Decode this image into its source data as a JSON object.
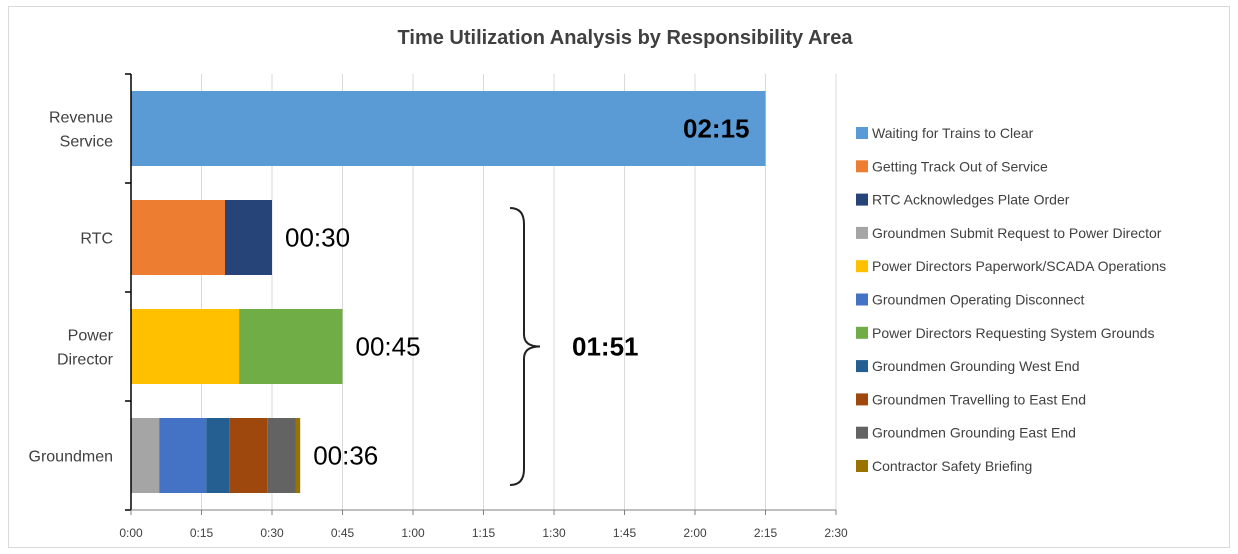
{
  "chart_data": {
    "type": "bar",
    "orientation": "horizontal",
    "stacked": true,
    "title": "Time Utilization Analysis by Responsibility Area",
    "xlabel": "",
    "ylabel": "",
    "value_unit": "minutes",
    "xlim": [
      0,
      150
    ],
    "xticks": [
      0,
      15,
      30,
      45,
      60,
      75,
      90,
      105,
      120,
      135,
      150
    ],
    "xtick_labels": [
      "0:00",
      "0:15",
      "0:30",
      "0:45",
      "1:00",
      "1:15",
      "1:30",
      "1:45",
      "2:00",
      "2:15",
      "2:30"
    ],
    "grid": "vertical",
    "legend_position": "right",
    "categories": [
      {
        "label_lines": [
          "Revenue",
          "Service"
        ],
        "total_label": "02:15",
        "total_bold": true,
        "total_inside": true
      },
      {
        "label_lines": [
          "RTC"
        ],
        "total_label": "00:30",
        "total_bold": false,
        "total_inside": false
      },
      {
        "label_lines": [
          "Power",
          "Director"
        ],
        "total_label": "00:45",
        "total_bold": false,
        "total_inside": false
      },
      {
        "label_lines": [
          "Groundmen"
        ],
        "total_label": "00:36",
        "total_bold": false,
        "total_inside": false
      }
    ],
    "series": [
      {
        "name": "Waiting for Trains to Clear",
        "color": "#5b9bd5",
        "values": [
          135,
          0,
          0,
          0
        ]
      },
      {
        "name": "Getting Track Out of Service",
        "color": "#ed7d31",
        "values": [
          0,
          20,
          0,
          0
        ]
      },
      {
        "name": "RTC Acknowledges Plate Order",
        "color": "#264478",
        "values": [
          0,
          10,
          0,
          0
        ]
      },
      {
        "name": "Groundmen Submit Request to Power Director",
        "color": "#a5a5a5",
        "values": [
          0,
          0,
          0,
          6
        ]
      },
      {
        "name": "Power Directors Paperwork/SCADA Operations",
        "color": "#ffc000",
        "values": [
          0,
          0,
          23,
          0
        ]
      },
      {
        "name": "Groundmen Operating Disconnect",
        "color": "#4472c4",
        "values": [
          0,
          0,
          0,
          10
        ]
      },
      {
        "name": "Power Directors Requesting System Grounds",
        "color": "#70ad47",
        "values": [
          0,
          0,
          22,
          0
        ]
      },
      {
        "name": "Groundmen Grounding West End",
        "color": "#255e91",
        "values": [
          0,
          0,
          0,
          5
        ]
      },
      {
        "name": "Groundmen Travelling to East End",
        "color": "#9e480e",
        "values": [
          0,
          0,
          0,
          8
        ]
      },
      {
        "name": "Groundmen Grounding East End",
        "color": "#636363",
        "values": [
          0,
          0,
          0,
          6
        ]
      },
      {
        "name": "Contractor Safety Briefing",
        "color": "#997300",
        "values": [
          0,
          0,
          0,
          1
        ]
      }
    ],
    "annotations": [
      {
        "type": "brace",
        "spans_categories": [
          1,
          3
        ],
        "label": "01:51",
        "label_bold": true
      }
    ]
  }
}
